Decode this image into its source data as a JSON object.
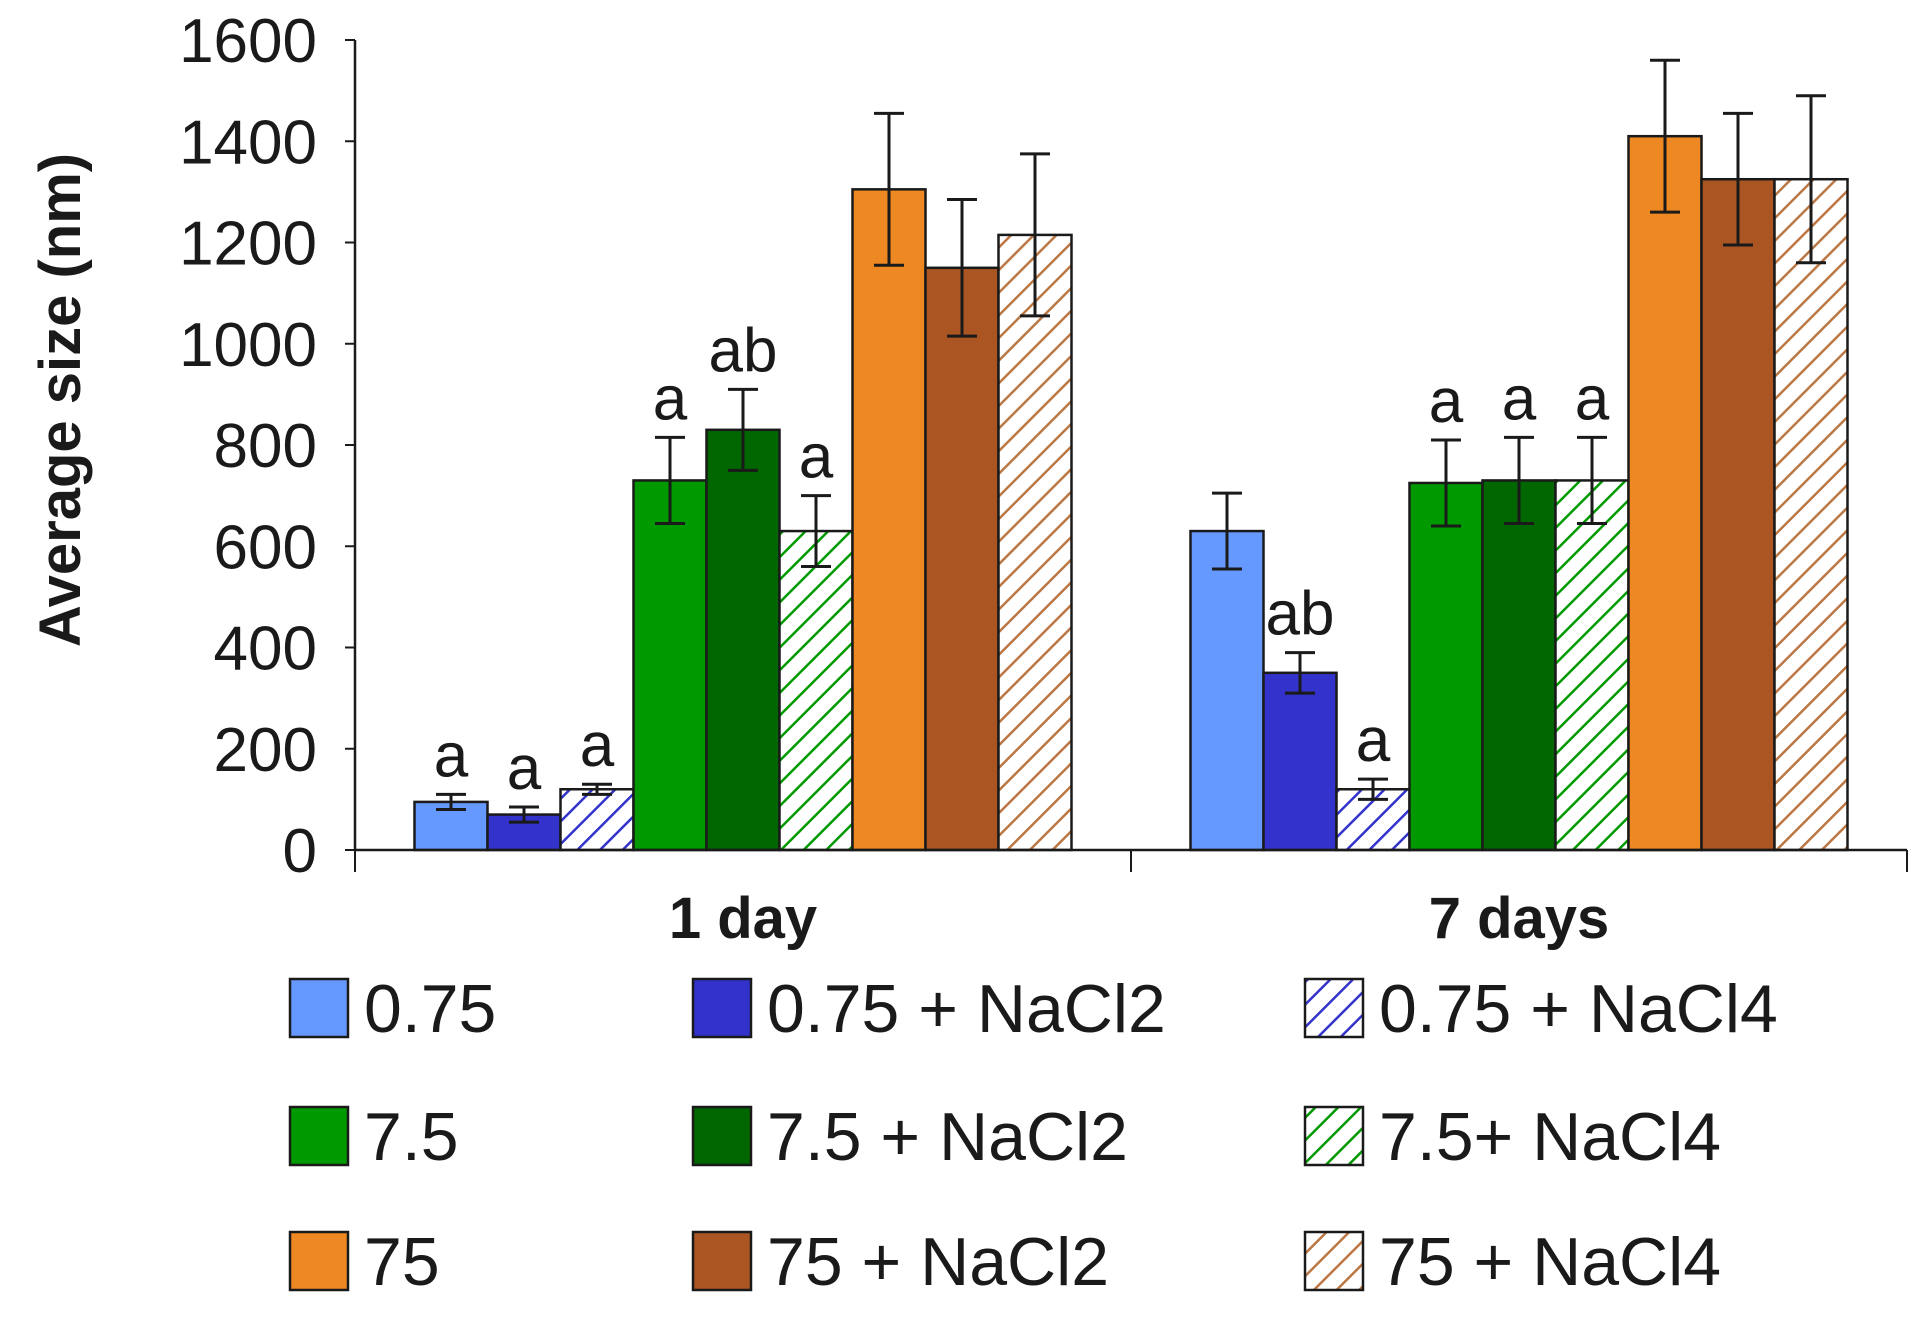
{
  "chart_data": {
    "type": "bar",
    "title": "",
    "xlabel": "",
    "ylabel": "Average size (nm)",
    "ylim": [
      0,
      1600
    ],
    "yticks": [
      "0",
      "200",
      "400",
      "600",
      "800",
      "1000",
      "1200",
      "1400",
      "1600"
    ],
    "grid": false,
    "legend_position": "bottom",
    "categories": [
      "1 day",
      "7 days"
    ],
    "series": [
      {
        "name": "0.75",
        "color": "#6699ff",
        "pattern": "solid",
        "values": [
          95,
          630
        ],
        "errors": [
          15,
          75
        ],
        "labels": [
          "a",
          ""
        ]
      },
      {
        "name": "0.75 + NaCl2",
        "color": "#3333cc",
        "pattern": "solid",
        "values": [
          70,
          350
        ],
        "errors": [
          15,
          40
        ],
        "labels": [
          "a",
          "ab"
        ]
      },
      {
        "name": "0.75 + NaCl4",
        "color": "#3333cc",
        "pattern": "hatch",
        "values": [
          120,
          120
        ],
        "errors": [
          10,
          20
        ],
        "labels": [
          "a",
          "a"
        ]
      },
      {
        "name": "7.5",
        "color": "#009900",
        "pattern": "solid",
        "values": [
          730,
          725
        ],
        "errors": [
          85,
          85
        ],
        "labels": [
          "a",
          "a"
        ]
      },
      {
        "name": "7.5 + NaCl2",
        "color": "#006600",
        "pattern": "solid",
        "values": [
          830,
          730
        ],
        "errors": [
          80,
          85
        ],
        "labels": [
          "ab",
          "a"
        ]
      },
      {
        "name": "7.5+ NaCl4",
        "color": "#009900",
        "pattern": "hatch",
        "values": [
          630,
          730
        ],
        "errors": [
          70,
          85
        ],
        "labels": [
          "a",
          "a"
        ]
      },
      {
        "name": "75",
        "color": "#ee8822",
        "pattern": "solid",
        "values": [
          1305,
          1410
        ],
        "errors": [
          150,
          150
        ],
        "labels": [
          "",
          ""
        ]
      },
      {
        "name": "75 + NaCl2",
        "color": "#aa5522",
        "pattern": "solid",
        "values": [
          1150,
          1325
        ],
        "errors": [
          135,
          130
        ],
        "labels": [
          "",
          ""
        ]
      },
      {
        "name": "75 + NaCl4",
        "color": "#bb7744",
        "pattern": "hatch",
        "values": [
          1215,
          1325
        ],
        "errors": [
          160,
          165
        ],
        "labels": [
          "",
          ""
        ]
      }
    ]
  }
}
